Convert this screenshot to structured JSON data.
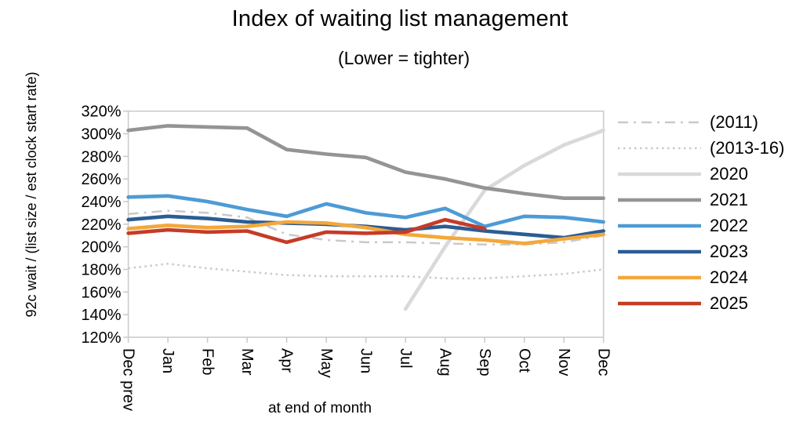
{
  "chart": {
    "title": "Index of waiting list management",
    "subtitle": "(Lower = tighter)",
    "y_axis_title": "92c wait / (list size / est clock start rate)",
    "x_axis_title": "at end of month"
  },
  "chart_data": {
    "type": "line",
    "title": "Index of waiting list management",
    "subtitle": "(Lower = tighter)",
    "xlabel": "at end of month",
    "ylabel": "92c wait / (list size / est clock start rate)",
    "categories": [
      "Dec prev",
      "Jan",
      "Feb",
      "Mar",
      "Apr",
      "May",
      "Jun",
      "Jul",
      "Aug",
      "Sep",
      "Oct",
      "Nov",
      "Dec"
    ],
    "ylim": [
      120,
      320
    ],
    "ytick_step": 20,
    "y_tick_labels": [
      "320%",
      "300%",
      "280%",
      "260%",
      "240%",
      "220%",
      "200%",
      "180%",
      "160%",
      "140%",
      "120%"
    ],
    "grid": false,
    "legend_position": "right",
    "axis_color": "#c9c9c9",
    "series": [
      {
        "name": "(2011)",
        "color": "#c9c9c9",
        "style": "dashdot",
        "width": 2.5,
        "values": [
          229,
          232,
          230,
          226,
          211,
          206,
          204,
          204,
          203,
          202,
          202,
          204,
          210
        ]
      },
      {
        "name": "(2013-16)",
        "color": "#c9c9c9",
        "style": "dotted",
        "width": 2.5,
        "values": [
          181,
          185,
          181,
          178,
          175,
          174,
          174,
          174,
          172,
          172,
          174,
          176,
          180
        ]
      },
      {
        "name": "2020",
        "color": "#d9d9d9",
        "style": "solid",
        "width": 4.6,
        "values": [
          null,
          null,
          null,
          null,
          null,
          null,
          null,
          145,
          200,
          250,
          272,
          290,
          303
        ]
      },
      {
        "name": "2021",
        "color": "#949494",
        "style": "solid",
        "width": 4.6,
        "values": [
          303,
          307,
          306,
          305,
          286,
          282,
          279,
          266,
          260,
          252,
          247,
          243,
          243
        ]
      },
      {
        "name": "2022",
        "color": "#4d9bd6",
        "style": "solid",
        "width": 4.6,
        "values": [
          244,
          245,
          240,
          233,
          227,
          238,
          230,
          226,
          234,
          218,
          227,
          226,
          222
        ]
      },
      {
        "name": "2023",
        "color": "#2b5c94",
        "style": "solid",
        "width": 4.6,
        "values": [
          224,
          227,
          225,
          222,
          221,
          220,
          218,
          215,
          218,
          214,
          211,
          208,
          214
        ]
      },
      {
        "name": "2024",
        "color": "#f3a83c",
        "style": "solid",
        "width": 4.6,
        "values": [
          216,
          219,
          217,
          218,
          222,
          221,
          217,
          211,
          208,
          206,
          203,
          207,
          211
        ]
      },
      {
        "name": "2025",
        "color": "#c63b26",
        "style": "solid",
        "width": 4.6,
        "values": [
          212,
          215,
          213,
          214,
          204,
          213,
          212,
          213,
          224,
          216
        ]
      }
    ]
  }
}
